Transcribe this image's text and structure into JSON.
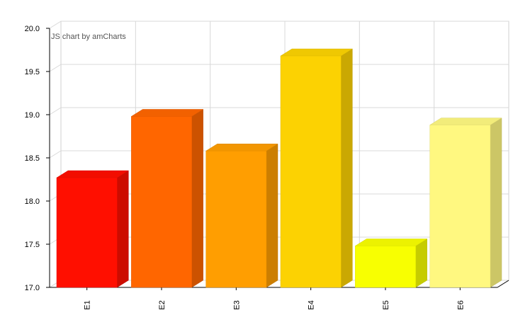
{
  "credit": "JS chart by amCharts",
  "chart_data": {
    "type": "bar",
    "categories": [
      "E1",
      "E2",
      "E3",
      "E4",
      "E5",
      "E6"
    ],
    "values": [
      18.27,
      18.98,
      18.58,
      19.68,
      17.48,
      18.88
    ],
    "colors": [
      "#FF0F00",
      "#FF6600",
      "#FF9E01",
      "#FCD202",
      "#F8FF01",
      "#FFF880"
    ],
    "ylim": [
      17.0,
      20.0
    ],
    "yticks": [
      "17.0",
      "17.5",
      "18.0",
      "18.5",
      "19.0",
      "19.5",
      "20.0"
    ],
    "title": "",
    "xlabel": "",
    "ylabel": "",
    "grid": true,
    "style": "3d-column"
  }
}
